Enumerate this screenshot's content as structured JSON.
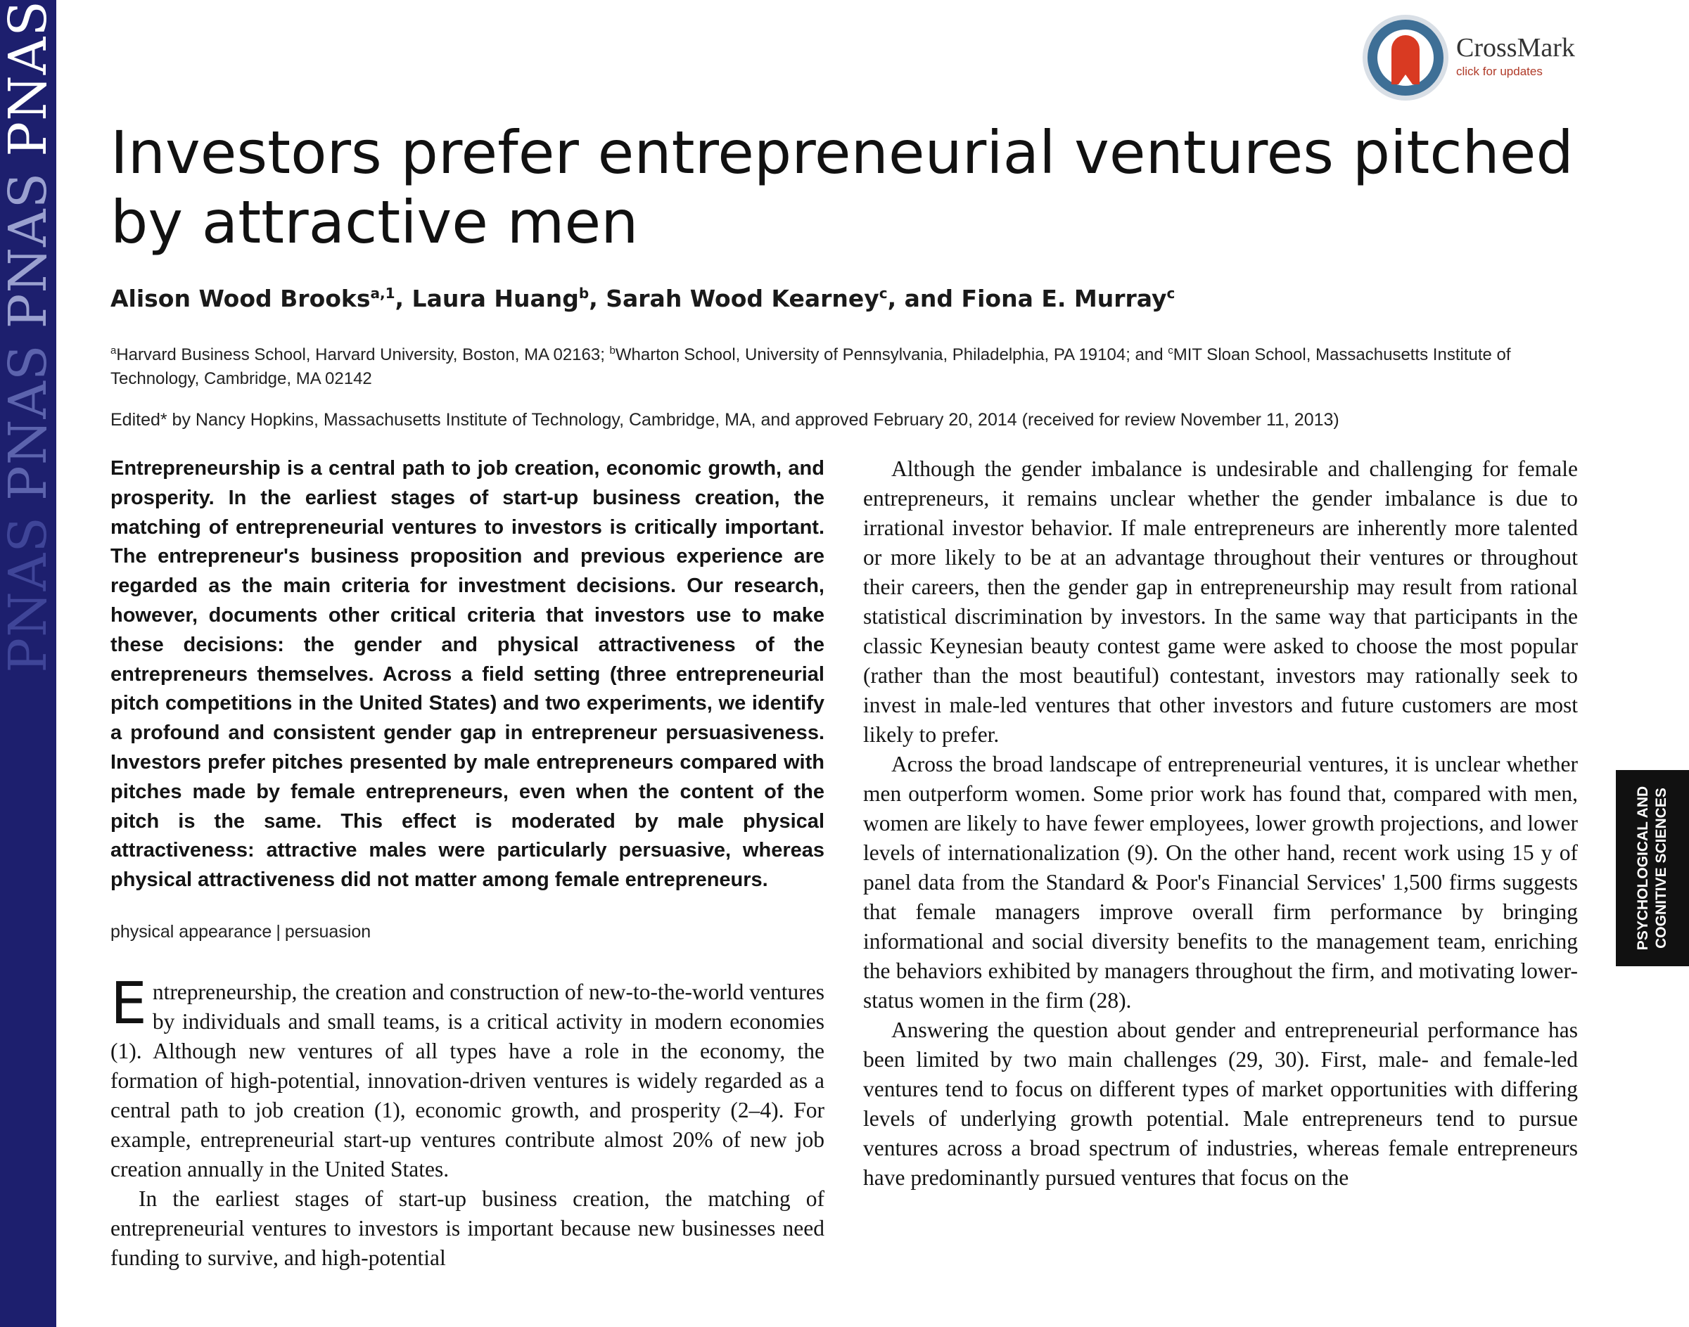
{
  "journal_band": {
    "words": [
      "PNAS",
      "PNAS",
      "PNAS",
      "PNAS"
    ]
  },
  "crossmark": {
    "name": "CrossMark",
    "subtitle": "click for updates",
    "colors": {
      "ring": "#3e6f96",
      "ribbon": "#d93a22"
    }
  },
  "article": {
    "title": "Investors prefer entrepreneurial ventures pitched by attractive men",
    "authors": [
      {
        "name": "Alison Wood Brooks",
        "sup": "a,1",
        "sep": ", "
      },
      {
        "name": "Laura Huang",
        "sup": "b",
        "sep": ", "
      },
      {
        "name": "Sarah Wood Kearney",
        "sup": "c",
        "sep": ", and "
      },
      {
        "name": "Fiona E. Murray",
        "sup": "c",
        "sep": ""
      }
    ],
    "affiliations": {
      "a_sup": "a",
      "a_text": "Harvard Business School, Harvard University, Boston, MA 02163; ",
      "b_sup": "b",
      "b_text": "Wharton School, University of Pennsylvania, Philadelphia, PA 19104; and ",
      "c_sup": "c",
      "c_text": "MIT Sloan School, Massachusetts Institute of Technology, Cambridge, MA 02142"
    },
    "edited_line": "Edited* by Nancy Hopkins, Massachusetts Institute of Technology, Cambridge, MA, and approved February 20, 2014 (received for review November 11, 2013)",
    "abstract": "Entrepreneurship is a central path to job creation, economic growth, and prosperity. In the earliest stages of start-up business creation, the matching of entrepreneurial ventures to investors is critically important. The entrepreneur's business proposition and previous experience are regarded as the main criteria for investment decisions. Our research, however, documents other critical criteria that investors use to make these decisions: the gender and physical attractiveness of the entrepreneurs themselves. Across a field setting (three entrepreneurial pitch competitions in the United States) and two experiments, we identify a profound and consistent gender gap in entrepreneur persuasiveness. Investors prefer pitches presented by male entrepreneurs compared with pitches made by female entrepreneurs, even when the content of the pitch is the same. This effect is moderated by male physical attractiveness: attractive males were particularly persuasive, whereas physical attractiveness did not matter among female entrepreneurs.",
    "keywords": [
      "physical appearance",
      "persuasion"
    ],
    "keyword_separator": "|",
    "intro_dropcap": "E",
    "intro_p1": "ntrepreneurship, the creation and construction of new-to-the-world ventures by individuals and small teams, is a critical activity in modern economies (1). Although new ventures of all types have a role in the economy, the formation of high-potential, innovation-driven ventures is widely regarded as a central path to job creation (1), economic growth, and prosperity (2–4). For example, entrepreneurial start-up ventures contribute almost 20% of new job creation annually in the United States.",
    "intro_p2": "In the earliest stages of start-up business creation, the matching of entrepreneurial ventures to investors is important because new businesses need funding to survive, and high-potential",
    "right_p1": "Although the gender imbalance is undesirable and challenging for female entrepreneurs, it remains unclear whether the gender imbalance is due to irrational investor behavior. If male entrepreneurs are inherently more talented or more likely to be at an advantage throughout their ventures or throughout their careers, then the gender gap in entrepreneurship may result from rational statistical discrimination by investors. In the same way that participants in the classic Keynesian beauty contest game were asked to choose the most popular (rather than the most beautiful) contestant, investors may rationally seek to invest in male-led ventures that other investors and future customers are most likely to prefer.",
    "right_p2": "Across the broad landscape of entrepreneurial ventures, it is unclear whether men outperform women. Some prior work has found that, compared with men, women are likely to have fewer employees, lower growth projections, and lower levels of internationalization (9). On the other hand, recent work using 15 y of panel data from the Standard & Poor's Financial Services' 1,500 firms suggests that female managers improve overall firm performance by bringing informational and social diversity benefits to the management team, enriching the behaviors exhibited by managers throughout the firm, and motivating lower-status women in the firm (28).",
    "right_p3": "Answering the question about gender and entrepreneurial performance has been limited by two main challenges (29, 30). First, male- and female-led ventures tend to focus on different types of market opportunities with differing levels of underlying growth potential. Male entrepreneurs tend to pursue ventures across a broad spectrum of industries, whereas female entrepreneurs have predominantly pursued ventures that focus on the"
  },
  "side_tab": {
    "line1": "PSYCHOLOGICAL AND",
    "line2": "COGNITIVE SCIENCES"
  }
}
